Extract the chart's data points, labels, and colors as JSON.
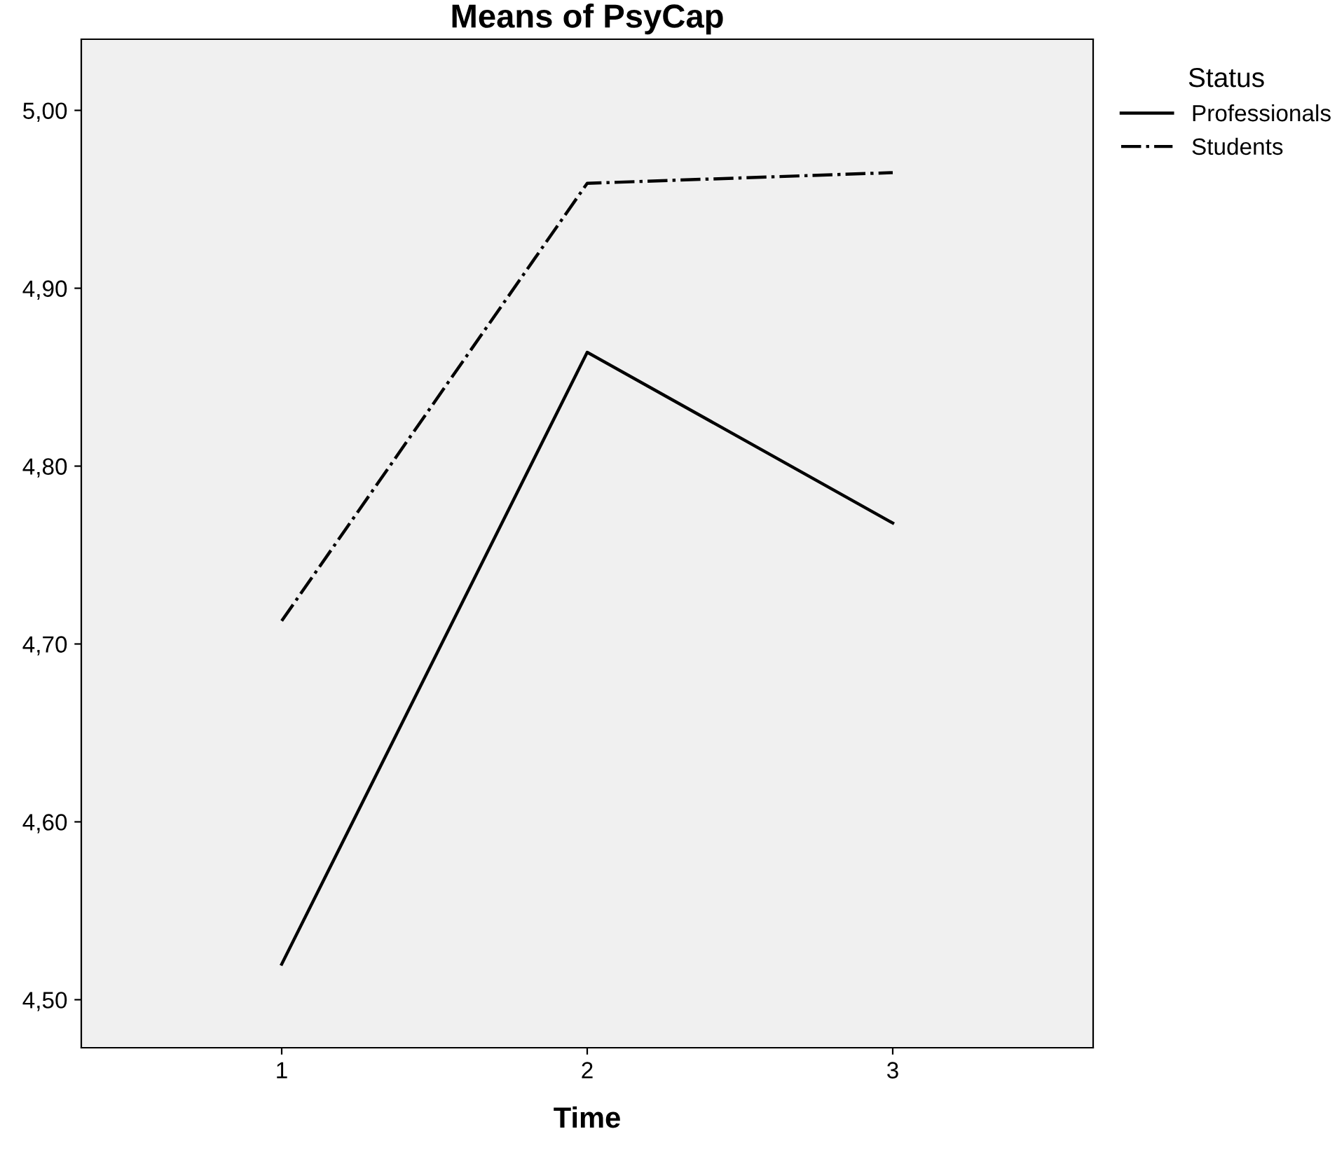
{
  "chart_data": {
    "type": "line",
    "title": "Means of PsyCap",
    "xlabel": "Time",
    "legend_title": "Status",
    "legend": "top right",
    "marker": "none",
    "grid": false,
    "categories": [
      "1",
      "2",
      "3"
    ],
    "ylim": [
      4.473,
      5.04
    ],
    "yticks": [
      {
        "value": 4.5,
        "label": "4,50"
      },
      {
        "value": 4.6,
        "label": "4,60"
      },
      {
        "value": 4.7,
        "label": "4,70"
      },
      {
        "value": 4.8,
        "label": "4,80"
      },
      {
        "value": 4.9,
        "label": "4,90"
      },
      {
        "value": 5.0,
        "label": "5,00"
      }
    ],
    "series": [
      {
        "name": "Professionals",
        "color": "#000000",
        "line_style": "solid",
        "values": [
          4.52,
          4.864,
          4.768
        ]
      },
      {
        "name": "Students",
        "color": "#000000",
        "line_style": "dashdot",
        "values": [
          4.713,
          4.959,
          4.965
        ]
      }
    ]
  }
}
